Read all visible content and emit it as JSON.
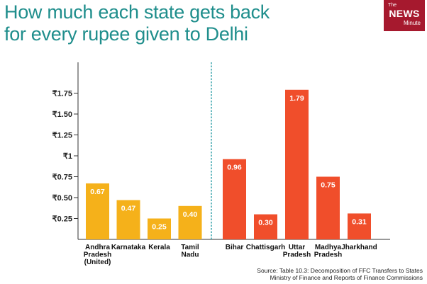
{
  "title": {
    "line1": "How much each state gets back",
    "line2": "for every rupee given to Delhi"
  },
  "logo": {
    "the": "The",
    "news": "NEWS",
    "minute": "Minute"
  },
  "source": {
    "line1": "Source: Table 10.3: Decomposition of FFC Transfers to States",
    "line2": "Ministry of Finance and Reports of Finance Commissions"
  },
  "colors": {
    "group1": "#f5b11a",
    "group2": "#f04e2b",
    "divider": "#43a8b0",
    "axis": "#333333",
    "title": "#1f8e8c",
    "logo_bg": "#a6192e"
  },
  "chart_data": {
    "type": "bar",
    "title": "How much each state gets back for every rupee given to Delhi",
    "xlabel": "",
    "ylabel": "",
    "ylim": [
      0,
      2
    ],
    "yticks": [
      {
        "value": 0.25,
        "label": "₹0.25"
      },
      {
        "value": 0.5,
        "label": "₹0.50"
      },
      {
        "value": 0.75,
        "label": "₹0.75"
      },
      {
        "value": 1.0,
        "label": "₹1"
      },
      {
        "value": 1.25,
        "label": "₹1.25"
      },
      {
        "value": 1.5,
        "label": "₹1.50"
      },
      {
        "value": 1.75,
        "label": "₹1.75"
      }
    ],
    "grid": false,
    "groups": [
      {
        "name": "group1",
        "bars": [
          {
            "category": [
              "Andhra",
              "Pradesh",
              "(United)"
            ],
            "value": 0.67,
            "label": "0.67"
          },
          {
            "category": [
              "Karnataka"
            ],
            "value": 0.47,
            "label": "0.47"
          },
          {
            "category": [
              "Kerala"
            ],
            "value": 0.25,
            "label": "0.25"
          },
          {
            "category": [
              "Tamil",
              "Nadu"
            ],
            "value": 0.4,
            "label": "0.40"
          }
        ]
      },
      {
        "name": "group2",
        "bars": [
          {
            "category": [
              "Bihar"
            ],
            "value": 0.96,
            "label": "0.96"
          },
          {
            "category": [
              "Chattisgarh"
            ],
            "value": 0.3,
            "label": "0.30"
          },
          {
            "category": [
              "Uttar",
              "Pradesh"
            ],
            "value": 1.79,
            "label": "1.79"
          },
          {
            "category": [
              "Madhya",
              "Pradesh"
            ],
            "value": 0.75,
            "label": "0.75"
          },
          {
            "category": [
              "Jharkhand"
            ],
            "value": 0.31,
            "label": "0.31"
          }
        ]
      }
    ]
  }
}
